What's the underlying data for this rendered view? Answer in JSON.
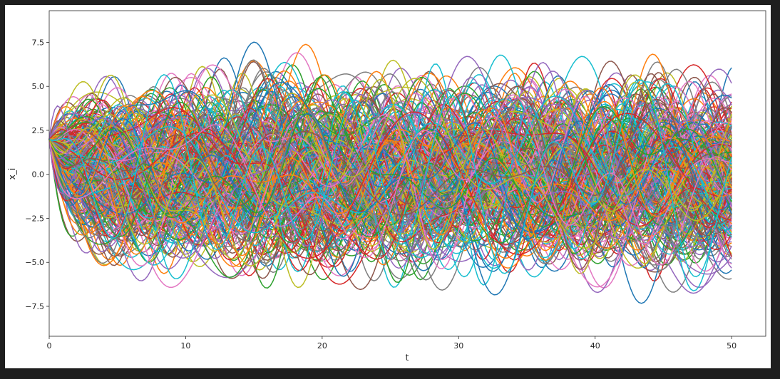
{
  "chart_data": {
    "type": "line",
    "title": "",
    "xlabel": "t",
    "ylabel": "x_i",
    "xlim": [
      0,
      52.5
    ],
    "ylim": [
      -9.2,
      9.3
    ],
    "xticks": [
      0,
      10,
      20,
      30,
      40,
      50
    ],
    "xtick_labels": [
      "0",
      "10",
      "20",
      "30",
      "40",
      "50"
    ],
    "yticks": [
      -7.5,
      -5.0,
      -2.5,
      0.0,
      2.5,
      5.0,
      7.5
    ],
    "ytick_labels": [
      "−7.5",
      "−5.0",
      "−2.5",
      "0.0",
      "2.5",
      "5.0",
      "7.5"
    ],
    "t_range": [
      0,
      50
    ],
    "initial_value": 2.0,
    "n_series": 300,
    "stationary_std": 2.3,
    "envelope_max": 8.4,
    "envelope_min": -8.3,
    "grid": false,
    "legend": "none",
    "colors": [
      "#1f77b4",
      "#ff7f0e",
      "#2ca02c",
      "#d62728",
      "#9467bd",
      "#8c564b",
      "#e377c2",
      "#7f7f7f",
      "#bcbd22",
      "#17becf"
    ]
  }
}
